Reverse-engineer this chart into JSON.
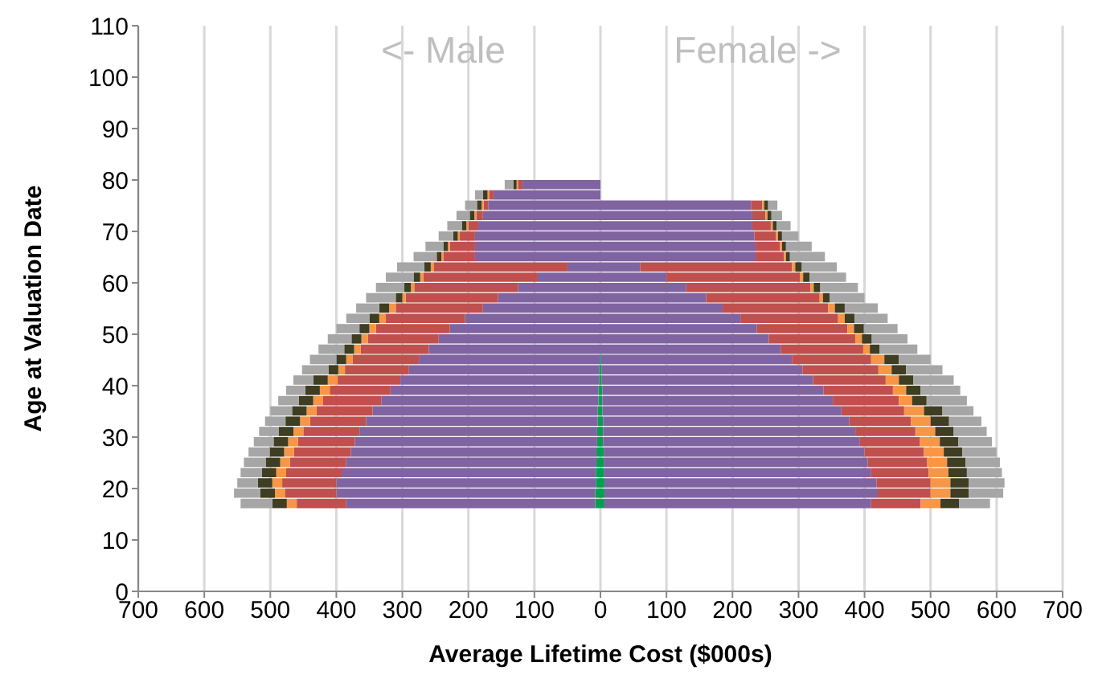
{
  "chart_data": {
    "type": "bar",
    "orientation": "horizontal",
    "stacked": true,
    "xlabel": "Average Lifetime Cost ($000s)",
    "ylabel": "Age at Valuation Date",
    "annotations": [
      "<- Male",
      "Female ->"
    ],
    "x": [
      17,
      19,
      21,
      23,
      25,
      27,
      29,
      31,
      33,
      35,
      37,
      39,
      41,
      43,
      45,
      47,
      49,
      51,
      53,
      55,
      57,
      59,
      61,
      63,
      65,
      67,
      69,
      71,
      73,
      75,
      77,
      79
    ],
    "xlim": [
      -700,
      700
    ],
    "xticks": [
      {
        "value": -700,
        "label": "700"
      },
      {
        "value": -600,
        "label": "600"
      },
      {
        "value": -500,
        "label": "500"
      },
      {
        "value": -400,
        "label": "400"
      },
      {
        "value": -300,
        "label": "300"
      },
      {
        "value": -200,
        "label": "200"
      },
      {
        "value": -100,
        "label": "100"
      },
      0,
      100,
      200,
      300,
      400,
      500,
      600,
      700
    ],
    "ylim": [
      0,
      110
    ],
    "yticks": [
      0,
      10,
      20,
      30,
      40,
      50,
      60,
      70,
      80,
      90,
      100,
      110
    ],
    "grid": "x",
    "legend": false,
    "series": [
      {
        "color": "#00a050",
        "values": [
          -8,
          -8,
          -7,
          -7,
          -6,
          -6,
          -5,
          -5,
          -4,
          -4,
          -3,
          -3,
          -2,
          -2,
          -1,
          null,
          null,
          null,
          null,
          null,
          null,
          null,
          null,
          null,
          null,
          null,
          null,
          null,
          null,
          null,
          null,
          null
        ]
      },
      {
        "color": "#8064a2",
        "values": [
          -377,
          -392,
          -393,
          -385,
          -379,
          -372,
          -367,
          -360,
          -351,
          -341,
          -329,
          -315,
          -301,
          -288,
          -274,
          -260,
          -245,
          -228,
          -205,
          -178,
          -155,
          -125,
          -95,
          -50,
          -190,
          -190,
          -190,
          -185,
          -178,
          -170,
          -162,
          -118
        ]
      },
      {
        "color": "#c0504d",
        "values": [
          -75,
          -78,
          -82,
          -84,
          -85,
          -86,
          -86,
          -85,
          -85,
          -85,
          -88,
          -92,
          -95,
          -97,
          -100,
          -103,
          -107,
          -112,
          -120,
          -132,
          -140,
          -157,
          -173,
          -202,
          -48,
          -38,
          -23,
          -15,
          -10,
          -7,
          -6,
          -7
        ]
      },
      {
        "color": "#f79646",
        "values": [
          -15,
          -15,
          -15,
          -15,
          -15,
          -15,
          -15,
          -15,
          -15,
          -15,
          -15,
          -15,
          -15,
          -10,
          -10,
          -10,
          -10,
          -10,
          -10,
          -10,
          -5,
          -5,
          -5,
          -5,
          -3,
          -3,
          -3,
          -3,
          -3,
          -3,
          -3,
          -2
        ]
      },
      {
        "color": "#3f3d22",
        "values": [
          -22,
          -22,
          -22,
          -22,
          -22,
          -22,
          -22,
          -22,
          -22,
          -22,
          -22,
          -22,
          -22,
          -15,
          -15,
          -15,
          -15,
          -15,
          -15,
          -15,
          -10,
          -10,
          -10,
          -10,
          -7,
          -7,
          -7,
          -7,
          -7,
          -7,
          -7,
          -5
        ]
      },
      {
        "color": "#a6a6a6",
        "values": [
          -48,
          -40,
          -31,
          -32,
          -33,
          -32,
          -30,
          -30,
          -31,
          -33,
          -31,
          -29,
          -30,
          -40,
          -40,
          -39,
          -36,
          -35,
          -35,
          -35,
          -45,
          -43,
          -42,
          -41,
          -35,
          -27,
          -22,
          -22,
          -20,
          -18,
          -12,
          -13
        ]
      },
      {
        "color": "#00a050",
        "values": [
          6,
          6,
          6,
          5,
          5,
          5,
          4,
          4,
          4,
          3,
          3,
          3,
          2,
          2,
          1,
          null,
          null,
          null,
          null,
          null,
          null,
          null,
          null,
          null,
          null,
          null,
          null,
          null,
          null,
          null,
          null,
          null
        ]
      },
      {
        "color": "#8064a2",
        "values": [
          404,
          414,
          412,
          405,
          400,
          395,
          389,
          382,
          373,
          362,
          349,
          335,
          320,
          304,
          289,
          273,
          255,
          237,
          212,
          185,
          160,
          130,
          100,
          60,
          235,
          235,
          233,
          230,
          230,
          228,
          null,
          null
        ]
      },
      {
        "color": "#c0504d",
        "values": [
          75,
          80,
          82,
          87,
          90,
          90,
          91,
          91,
          93,
          95,
          100,
          105,
          110,
          115,
          120,
          125,
          131,
          137,
          148,
          160,
          172,
          188,
          202,
          230,
          43,
          37,
          33,
          28,
          20,
          17,
          null,
          null
        ]
      },
      {
        "color": "#f79646",
        "values": [
          30,
          30,
          30,
          30,
          30,
          30,
          30,
          30,
          30,
          30,
          20,
          20,
          20,
          20,
          20,
          10,
          10,
          10,
          10,
          10,
          5,
          5,
          5,
          5,
          3,
          3,
          3,
          3,
          3,
          3,
          null,
          null
        ]
      },
      {
        "color": "#3f3d22",
        "values": [
          28,
          28,
          28,
          28,
          28,
          28,
          28,
          28,
          28,
          28,
          22,
          22,
          22,
          22,
          22,
          15,
          15,
          15,
          15,
          15,
          10,
          10,
          10,
          10,
          6,
          6,
          6,
          6,
          6,
          6,
          null,
          null
        ]
      },
      {
        "color": "#a6a6a6",
        "values": [
          47,
          52,
          54,
          53,
          52,
          52,
          51,
          50,
          49,
          47,
          61,
          60,
          61,
          55,
          48,
          57,
          54,
          51,
          50,
          50,
          53,
          57,
          55,
          53,
          53,
          39,
          25,
          21,
          16,
          14,
          null,
          null
        ]
      }
    ]
  }
}
